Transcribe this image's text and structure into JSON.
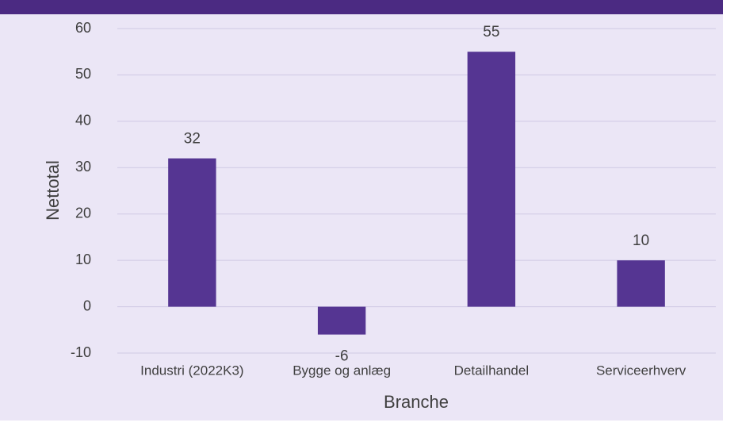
{
  "chart_data": {
    "type": "bar",
    "categories": [
      "Industri (2022K3)",
      "Bygge og anlæg",
      "Detailhandel",
      "Serviceerhverv"
    ],
    "values": [
      32,
      -6,
      55,
      10
    ],
    "color": "#553592",
    "x_label": "Branche",
    "y_label": "Nettotal",
    "ylim": [
      -10,
      60
    ],
    "yticks": [
      -10,
      0,
      10,
      20,
      30,
      40,
      50,
      60
    ],
    "grid": true
  }
}
